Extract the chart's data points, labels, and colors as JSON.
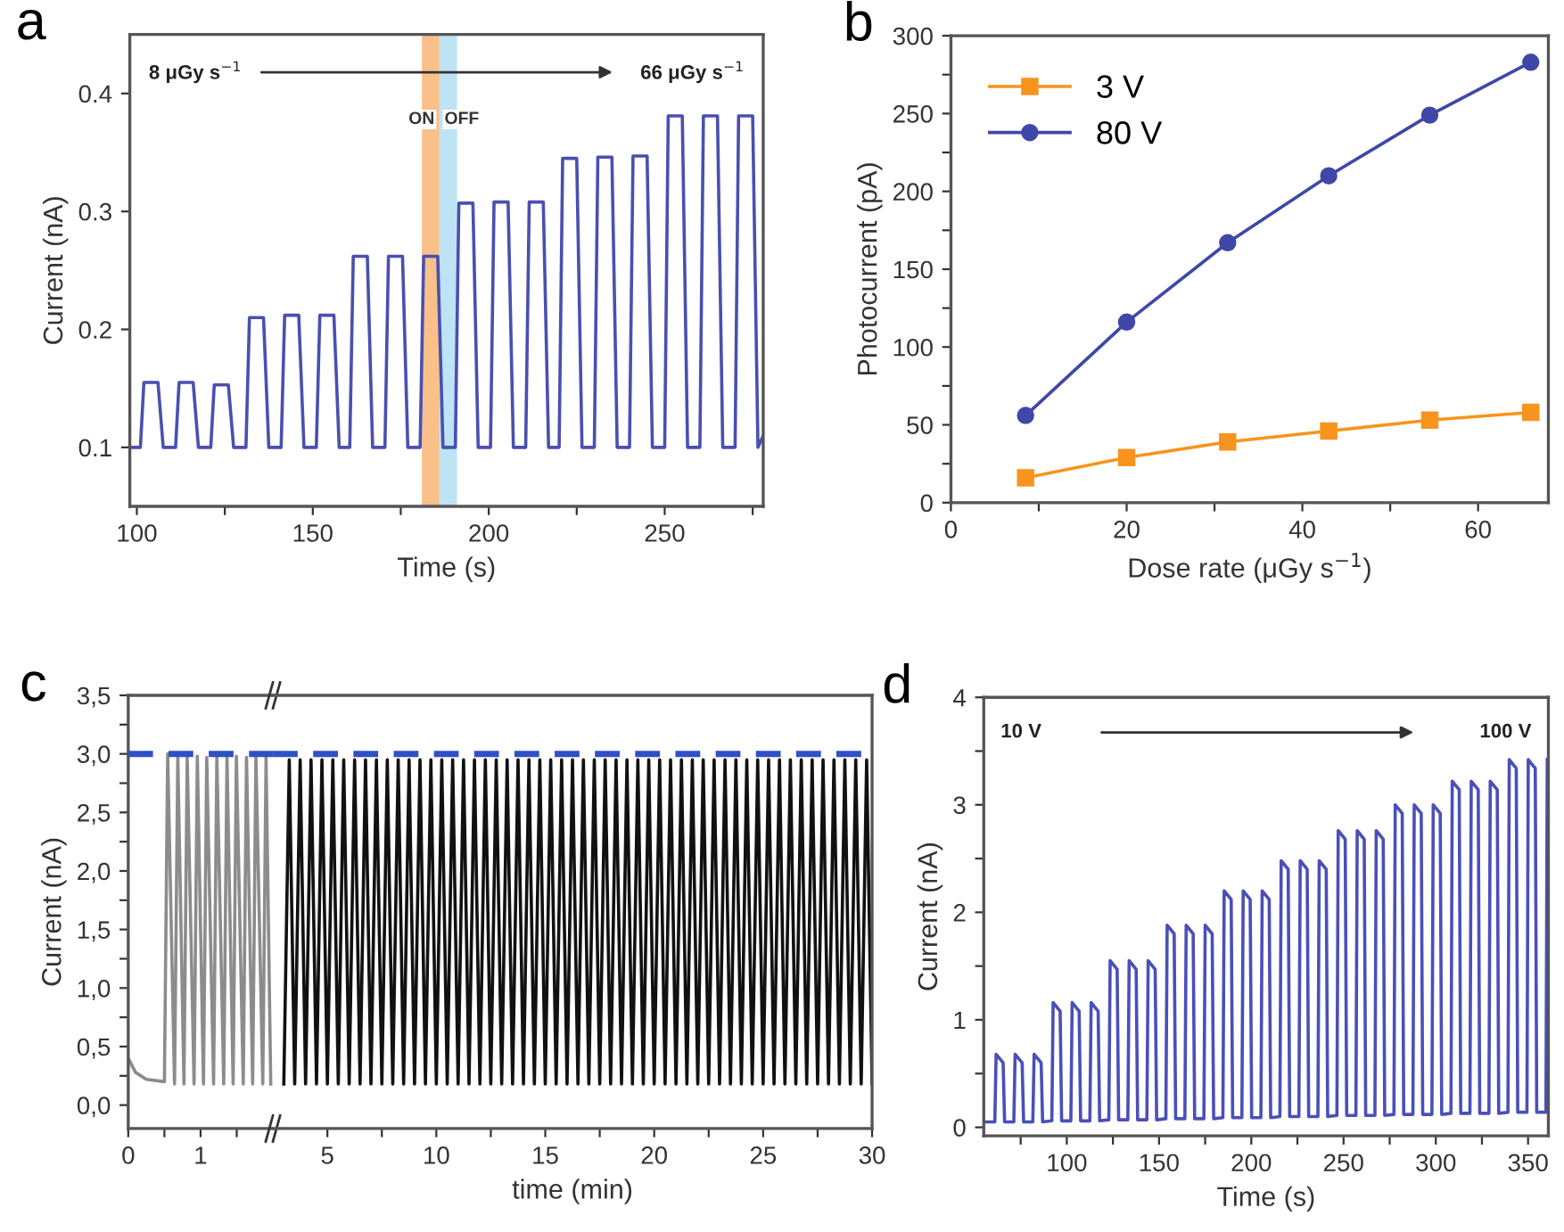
{
  "chart_data": [
    {
      "type": "line",
      "title": "a",
      "xlabel": "Time (s)",
      "ylabel": "Current (nA)",
      "xlim": [
        98,
        278
      ],
      "ylim": [
        0.05,
        0.45
      ],
      "xticks": [
        100,
        {
          "value": 125,
          "label": null
        },
        150,
        {
          "value": 175,
          "label": null
        },
        200,
        {
          "value": 225,
          "label": null
        },
        250,
        {
          "value": 275,
          "label": null
        }
      ],
      "yticks": [
        0.1,
        0.2,
        0.3,
        0.4
      ],
      "bands": [
        {
          "axis": "x",
          "from": 181,
          "to": 186,
          "label": "ON",
          "color": "#f9c08a"
        },
        {
          "axis": "x",
          "from": 186,
          "to": 191,
          "label": "OFF",
          "color": "#bde3f4"
        }
      ],
      "annotations": [
        "8 μGy s$^{−1}$",
        "66 μGy s$^{−1}$"
      ],
      "series": [
        {
          "color": "#4a50b0",
          "x": [
            98.5,
            101,
            102,
            106,
            107.5,
            111,
            112,
            116,
            117.5,
            121,
            122,
            126,
            127.5,
            131,
            132,
            136,
            137.5,
            141,
            142,
            146,
            147.5,
            151,
            152,
            156,
            157.5,
            160.5,
            161.5,
            165.5,
            167,
            170.5,
            171.5,
            175.5,
            177,
            180.5,
            181.5,
            185.5,
            187,
            190.5,
            191.5,
            195.5,
            197,
            200.5,
            201.5,
            205.5,
            207,
            210.5,
            211.5,
            215.5,
            217,
            220,
            221,
            225,
            226.5,
            230,
            231,
            235,
            236.5,
            240,
            241,
            245,
            246.5,
            250,
            251,
            255,
            256.5,
            260,
            261,
            265,
            266.5,
            270,
            271,
            275,
            276.5,
            278
          ],
          "values": [
            0.1,
            0.1,
            0.155,
            0.155,
            0.1,
            0.1,
            0.155,
            0.155,
            0.1,
            0.1,
            0.153,
            0.153,
            0.1,
            0.1,
            0.21,
            0.21,
            0.1,
            0.1,
            0.212,
            0.212,
            0.1,
            0.1,
            0.212,
            0.212,
            0.1,
            0.1,
            0.262,
            0.262,
            0.1,
            0.1,
            0.262,
            0.262,
            0.1,
            0.1,
            0.262,
            0.262,
            0.1,
            0.1,
            0.307,
            0.307,
            0.1,
            0.1,
            0.308,
            0.308,
            0.1,
            0.1,
            0.308,
            0.308,
            0.1,
            0.1,
            0.345,
            0.345,
            0.1,
            0.1,
            0.346,
            0.346,
            0.1,
            0.1,
            0.347,
            0.347,
            0.1,
            0.1,
            0.381,
            0.381,
            0.1,
            0.1,
            0.381,
            0.381,
            0.1,
            0.1,
            0.381,
            0.381,
            0.1,
            0.11
          ]
        }
      ]
    },
    {
      "type": "line",
      "title": "b",
      "xlabel": "Dose rate (μGy s$^{−1}$)",
      "ylabel": "Photocurrent (pA)",
      "xlim": [
        0,
        68
      ],
      "ylim": [
        0,
        300
      ],
      "xticks": [
        0,
        {
          "value": 10,
          "label": null
        },
        20,
        {
          "value": 30,
          "label": null
        },
        40,
        {
          "value": 50,
          "label": null
        },
        60
      ],
      "yticks": [
        0,
        {
          "value": 25,
          "label": null
        },
        50,
        {
          "value": 75,
          "label": null
        },
        100,
        {
          "value": 125,
          "label": null
        },
        150,
        {
          "value": 175,
          "label": null
        },
        200,
        {
          "value": 225,
          "label": null
        },
        250,
        {
          "value": 275,
          "label": null
        },
        300
      ],
      "legend": "top left",
      "series": [
        {
          "name": "3 V",
          "color": "#f7941d",
          "marker": "square",
          "x": [
            8.5,
            20,
            31.5,
            43,
            54.5,
            66
          ],
          "values": [
            16,
            29,
            39,
            46,
            53,
            58
          ]
        },
        {
          "name": "80 V",
          "color": "#3f48a8",
          "marker": "circle",
          "x": [
            8.5,
            20,
            31.5,
            43,
            54.5,
            66
          ],
          "values": [
            56,
            116,
            167,
            210,
            249,
            283
          ]
        }
      ]
    },
    {
      "type": "line",
      "title": "c",
      "ylabel": "Current (nA)",
      "xlim": [
        0,
        2
      ],
      "ylim": [
        -0.2,
        3.5
      ],
      "xticks": [
        0,
        {
          "value": 0.5,
          "label": null
        },
        1,
        {
          "value": 1.5,
          "label": null
        }
      ],
      "yticks": [
        {
          "value": 0,
          "label": "0,0"
        },
        {
          "value": 0.25,
          "label": null
        },
        {
          "value": 0.5,
          "label": "0,5"
        },
        {
          "value": 0.75,
          "label": null
        },
        {
          "value": 1,
          "label": "1,0"
        },
        {
          "value": 1.25,
          "label": null
        },
        {
          "value": 1.5,
          "label": "1,5"
        },
        {
          "value": 1.75,
          "label": null
        },
        {
          "value": 2,
          "label": "2,0"
        },
        {
          "value": 2.25,
          "label": null
        },
        {
          "value": 2.5,
          "label": "2,5"
        },
        {
          "value": 2.75,
          "label": null
        },
        {
          "value": 3,
          "label": "3,0"
        },
        {
          "value": 3.25,
          "label": null
        },
        {
          "value": 3.5,
          "label": "3,5"
        }
      ],
      "ref_lines": [
        {
          "axis": "y",
          "value": 3.0,
          "color": "#3050c8",
          "line_style": "dashed"
        }
      ],
      "series": [
        {
          "color": "#8c8c8c",
          "x": [
            0,
            0.1,
            0.25,
            0.5,
            0.545,
            0.64,
            0.685,
            0.77,
            0.815,
            0.91,
            0.955,
            1.04,
            1.085,
            1.18,
            1.225,
            1.32,
            1.365,
            1.45,
            1.495,
            1.59,
            1.635,
            1.72,
            1.765,
            1.86,
            1.905,
            1.97
          ],
          "values": [
            0.4,
            0.28,
            0.22,
            0.2,
            3.0,
            0.18,
            2.98,
            0.18,
            2.97,
            0.18,
            2.98,
            0.18,
            2.97,
            0.18,
            2.98,
            0.18,
            2.97,
            0.18,
            2.98,
            0.18,
            2.97,
            0.18,
            2.98,
            0.18,
            2.97,
            0.18
          ]
        }
      ]
    },
    {
      "type": "line",
      "xlabel": "time (min)",
      "xlim": [
        2.5,
        30
      ],
      "ylim": [
        -0.2,
        3.5
      ],
      "tick_labels": "x",
      "xticks": [
        5,
        {
          "value": 7.5,
          "label": null
        },
        10,
        {
          "value": 12.5,
          "label": null
        },
        15,
        {
          "value": 17.5,
          "label": null
        },
        20,
        {
          "value": 22.5,
          "label": null
        },
        25,
        {
          "value": 27.5,
          "label": null
        },
        30
      ],
      "ref_lines": [
        {
          "axis": "y",
          "value": 3.0,
          "color": "#3050c8",
          "line_style": "dashed"
        }
      ],
      "series": [
        {
          "color": "#111111",
          "x": [
            3,
            3.25,
            3.5,
            3.75,
            4,
            4.25,
            4.5,
            4.75,
            5,
            5.25,
            5.5,
            5.75,
            6,
            6.25,
            6.5,
            6.75,
            7,
            7.25,
            7.5,
            7.75,
            8,
            8.25,
            8.5,
            8.75,
            9,
            9.25,
            9.5,
            9.75,
            10,
            10.25,
            10.5,
            10.75,
            11,
            11.25,
            11.5,
            11.75,
            12,
            12.25,
            12.5,
            12.75,
            13,
            13.25,
            13.5,
            13.75,
            14,
            14.25,
            14.5,
            14.75,
            15,
            15.25,
            15.5,
            15.75,
            16,
            16.25,
            16.5,
            16.75,
            17,
            17.25,
            17.5,
            17.75,
            18,
            18.25,
            18.5,
            18.75,
            19,
            19.25,
            19.5,
            19.75,
            20,
            20.25,
            20.5,
            20.75,
            21,
            21.25,
            21.5,
            21.75,
            22,
            22.25,
            22.5,
            22.75,
            23,
            23.25,
            23.5,
            23.75,
            24,
            24.25,
            24.5,
            24.75,
            25,
            25.25,
            25.5,
            25.75,
            26,
            26.25,
            26.5,
            26.75,
            27,
            27.25,
            27.5,
            27.75,
            28,
            28.25,
            28.5,
            28.75,
            29,
            29.25,
            29.5,
            29.75,
            30
          ],
          "values": [
            0.18,
            2.95,
            0.18,
            2.95,
            0.18,
            2.95,
            0.18,
            2.95,
            0.18,
            2.95,
            0.18,
            2.95,
            0.18,
            2.95,
            0.18,
            2.95,
            0.18,
            2.95,
            0.18,
            2.95,
            0.18,
            2.95,
            0.18,
            2.95,
            0.18,
            2.95,
            0.18,
            2.95,
            0.18,
            2.95,
            0.18,
            2.95,
            0.18,
            2.95,
            0.18,
            2.95,
            0.18,
            2.95,
            0.18,
            2.95,
            0.18,
            2.95,
            0.18,
            2.95,
            0.18,
            2.95,
            0.18,
            2.95,
            0.18,
            2.95,
            0.18,
            2.95,
            0.18,
            2.95,
            0.18,
            2.95,
            0.18,
            2.95,
            0.18,
            2.95,
            0.18,
            2.95,
            0.18,
            2.95,
            0.18,
            2.95,
            0.18,
            2.95,
            0.18,
            2.95,
            0.18,
            2.95,
            0.18,
            2.95,
            0.18,
            2.95,
            0.18,
            2.95,
            0.18,
            2.95,
            0.18,
            2.95,
            0.18,
            2.95,
            0.18,
            2.95,
            0.18,
            2.95,
            0.18,
            2.95,
            0.18,
            2.95,
            0.18,
            2.95,
            0.18,
            2.95,
            0.18,
            2.95,
            0.18,
            2.95,
            0.18,
            2.95,
            0.18,
            2.95,
            0.18,
            2.95,
            0.18,
            2.95,
            0.18
          ]
        }
      ]
    },
    {
      "type": "line",
      "title": "d",
      "xlabel": "Time (s)",
      "ylabel": "Current (nA)",
      "xlim": [
        55,
        361
      ],
      "ylim": [
        -0.08,
        4
      ],
      "xticks": [
        {
          "value": 75,
          "label": null
        },
        100,
        {
          "value": 125,
          "label": null
        },
        150,
        {
          "value": 175,
          "label": null
        },
        200,
        {
          "value": 225,
          "label": null
        },
        250,
        {
          "value": 275,
          "label": null
        },
        300,
        {
          "value": 325,
          "label": null
        },
        350
      ],
      "yticks": [
        0,
        {
          "value": 0.5,
          "label": null
        },
        1,
        {
          "value": 1.5,
          "label": null
        },
        2,
        {
          "value": 2.5,
          "label": null
        },
        3,
        {
          "value": 3.5,
          "label": null
        },
        4
      ],
      "annotations": [
        "10 V",
        "100 V"
      ],
      "series": [
        {
          "color": "#4a50b8",
          "x": [
            55,
            61,
            61.7,
            65.5,
            66.3,
            71.3,
            72,
            75.8,
            76.6,
            81.6,
            82.3,
            86.1,
            86.9,
            91.9,
            92.6,
            96.4,
            97.2,
            102.2,
            102.9,
            106.7,
            107.5,
            112.5,
            113.2,
            117,
            117.8,
            122.8,
            123.5,
            127.3,
            128.1,
            133.1,
            133.8,
            137.6,
            138.4,
            143.4,
            144.1,
            147.9,
            148.7,
            153.7,
            154.4,
            158.2,
            159,
            164,
            164.7,
            168.5,
            169.3,
            174.3,
            175,
            178.8,
            179.6,
            184.6,
            185.3,
            189.1,
            189.9,
            194.9,
            195.6,
            199.4,
            200.2,
            205.2,
            205.9,
            209.7,
            210.5,
            215.5,
            216.2,
            220,
            220.8,
            225.8,
            226.5,
            230.3,
            231.1,
            236.1,
            236.8,
            240.6,
            241.4,
            246.4,
            247.1,
            250.9,
            251.7,
            256.7,
            257.4,
            261.2,
            262,
            267,
            267.7,
            271.5,
            272.3,
            277.3,
            278,
            281.8,
            282.6,
            287.6,
            288.3,
            292.1,
            292.9,
            297.9,
            298.6,
            302.4,
            303.2,
            308.2,
            308.9,
            312.7,
            313.5,
            318.5,
            319.2,
            323,
            323.8,
            328.8,
            329.5,
            333.3,
            334.1,
            339.1,
            339.8,
            343.6,
            344.4,
            349.4,
            350.1,
            353.9,
            354.7,
            359.7,
            360.4
          ],
          "values": [
            0.05,
            0.05,
            0.68,
            0.6,
            0.05,
            0.05,
            0.68,
            0.6,
            0.05,
            0.05,
            0.68,
            0.6,
            0.05,
            0.06,
            1.16,
            1.08,
            0.06,
            0.06,
            1.16,
            1.08,
            0.06,
            0.06,
            1.16,
            1.08,
            0.06,
            0.07,
            1.55,
            1.47,
            0.07,
            0.07,
            1.55,
            1.47,
            0.07,
            0.07,
            1.55,
            1.47,
            0.07,
            0.08,
            1.88,
            1.8,
            0.08,
            0.08,
            1.88,
            1.8,
            0.08,
            0.08,
            1.88,
            1.8,
            0.08,
            0.09,
            2.2,
            2.12,
            0.09,
            0.09,
            2.2,
            2.12,
            0.09,
            0.09,
            2.2,
            2.12,
            0.09,
            0.1,
            2.48,
            2.4,
            0.1,
            0.1,
            2.48,
            2.4,
            0.1,
            0.1,
            2.48,
            2.4,
            0.1,
            0.11,
            2.76,
            2.68,
            0.11,
            0.11,
            2.76,
            2.68,
            0.11,
            0.11,
            2.76,
            2.68,
            0.11,
            0.12,
            3.0,
            2.92,
            0.12,
            0.12,
            3.0,
            2.92,
            0.12,
            0.12,
            3.0,
            2.92,
            0.12,
            0.13,
            3.22,
            3.14,
            0.13,
            0.13,
            3.22,
            3.14,
            0.13,
            0.13,
            3.22,
            3.14,
            0.13,
            0.14,
            3.42,
            3.34,
            0.14,
            0.14,
            3.42,
            3.34,
            0.14,
            0.14,
            3.42
          ]
        }
      ]
    }
  ]
}
